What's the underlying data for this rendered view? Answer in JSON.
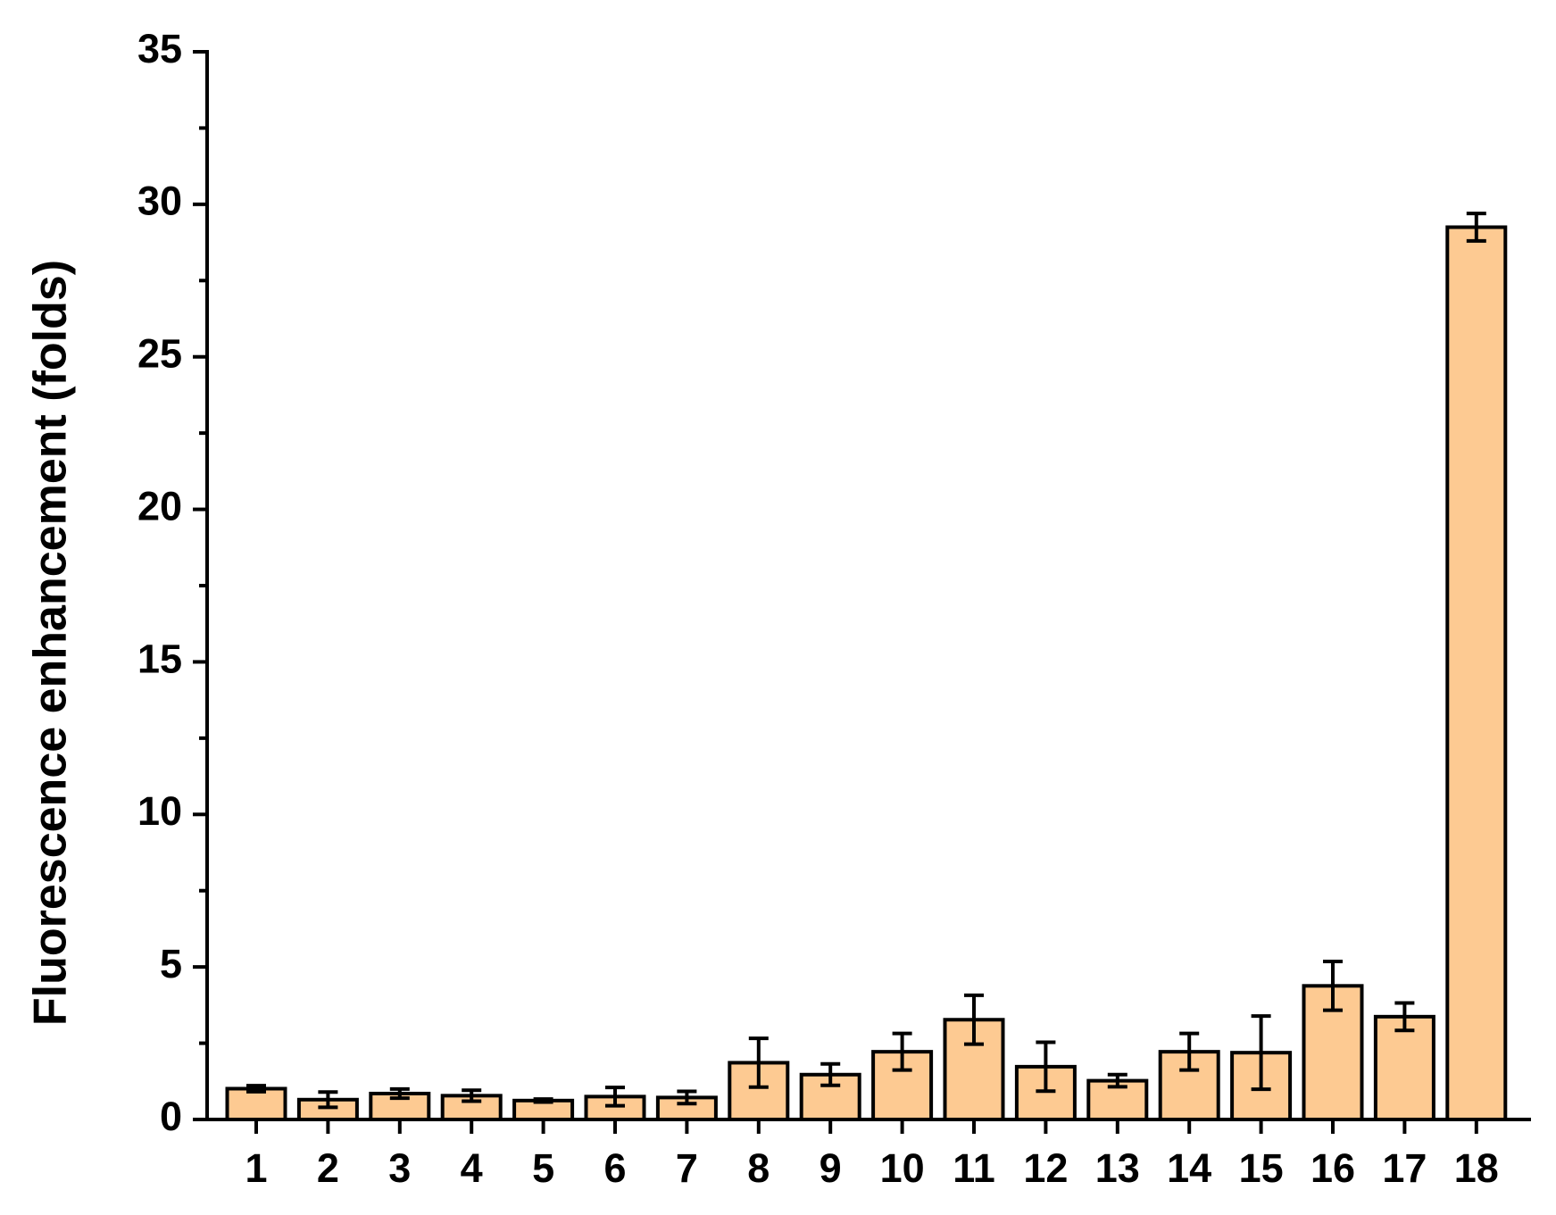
{
  "chart_data": {
    "type": "bar",
    "y_label": "Fluorescence enhancement (folds)",
    "categories": [
      "1",
      "2",
      "3",
      "4",
      "5",
      "6",
      "7",
      "8",
      "9",
      "10",
      "11",
      "12",
      "13",
      "14",
      "15",
      "16",
      "17",
      "18"
    ],
    "values": [
      1.01,
      0.65,
      0.85,
      0.78,
      0.62,
      0.75,
      0.72,
      1.86,
      1.47,
      2.22,
      3.27,
      1.73,
      1.27,
      2.22,
      2.19,
      4.38,
      3.37,
      29.25
    ],
    "errors": [
      0.1,
      0.25,
      0.15,
      0.18,
      0.05,
      0.3,
      0.2,
      0.8,
      0.35,
      0.6,
      0.8,
      0.8,
      0.2,
      0.6,
      1.2,
      0.8,
      0.45,
      0.45
    ],
    "color": "#fdca92",
    "ylim": [
      0,
      35
    ],
    "yticks": [
      0,
      5,
      10,
      15,
      20,
      25,
      30,
      35
    ],
    "yticks_minor": [
      2.5,
      7.5,
      12.5,
      17.5,
      22.5,
      27.5,
      32.5
    ]
  }
}
